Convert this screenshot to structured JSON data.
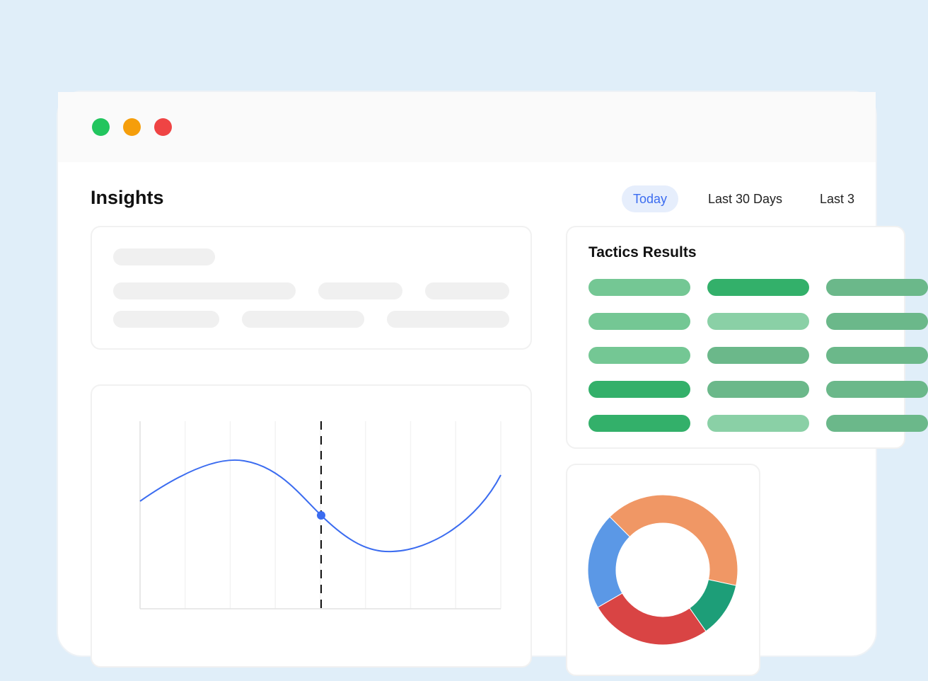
{
  "window": {
    "controls": [
      {
        "name": "green",
        "color": "#22c55e"
      },
      {
        "name": "orange",
        "color": "#f59e0b"
      },
      {
        "name": "red",
        "color": "#ef4444"
      }
    ]
  },
  "header": {
    "title": "Insights",
    "tabs": [
      {
        "label": "Today",
        "active": true
      },
      {
        "label": "Last 30 Days",
        "active": false
      },
      {
        "label": "Last 3",
        "active": false
      }
    ]
  },
  "tactics": {
    "title": "Tactics Results",
    "colors": {
      "light": "#74c794",
      "dark": "#33b06a",
      "pale": "#8ad0a6",
      "muted": "#6bb88a"
    },
    "rows": [
      [
        "light",
        "dark",
        "muted"
      ],
      [
        "light",
        "pale",
        "muted"
      ],
      [
        "light",
        "muted",
        "muted"
      ],
      [
        "dark",
        "muted",
        "muted"
      ],
      [
        "dark",
        "pale",
        "muted"
      ]
    ]
  },
  "chart_data": [
    {
      "type": "line",
      "series_color": "#3b6cf0",
      "curve_shape": [
        0.57,
        0.78,
        0.46,
        0.3,
        0.71
      ],
      "highlight_index": 2,
      "grid": "vertical",
      "highlight_marker": "dashed-vertical"
    },
    {
      "type": "pie",
      "donut": true,
      "values": [
        40.8,
        11.9,
        26.4,
        20.8
      ],
      "colors": [
        "#f09765",
        "#1d9e78",
        "#d94444",
        "#5b98e6"
      ]
    }
  ]
}
